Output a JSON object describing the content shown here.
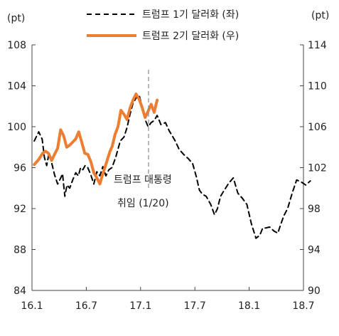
{
  "chart_data": {
    "type": "line",
    "left_axis": {
      "unit": "(pt)",
      "ylim": [
        84,
        108
      ],
      "ticks": [
        84,
        88,
        92,
        96,
        100,
        104,
        108
      ]
    },
    "right_axis": {
      "unit": "(pt)",
      "ylim": [
        90,
        114
      ],
      "ticks": [
        90,
        94,
        98,
        102,
        106,
        110,
        114
      ]
    },
    "x_axis": {
      "ticks": [
        "16.1",
        "16.7",
        "17.1",
        "17.7",
        "18.1",
        "18.7"
      ]
    },
    "annotation": {
      "lines": [
        "트럼프 대통령",
        "취임 (1/20)"
      ]
    },
    "series": [
      {
        "name": "트럼프 1기 달러화 (좌)",
        "axis": "left",
        "style": "dashed",
        "color": "#000000",
        "x": [
          "16.1",
          "16.1",
          "16.2",
          "16.2",
          "16.2",
          "16.2",
          "16.3",
          "16.3",
          "16.3",
          "16.4",
          "16.4",
          "16.4",
          "16.4",
          "16.5",
          "16.5",
          "16.5",
          "16.6",
          "16.6",
          "16.6",
          "16.6",
          "16.7",
          "16.7",
          "16.7",
          "16.8",
          "16.8",
          "16.8",
          "16.9",
          "16.9",
          "16.9",
          "16.10",
          "16.10",
          "16.11",
          "16.11",
          "16.11",
          "16.12",
          "16.12",
          "16.12",
          "17.1",
          "17.1",
          "17.1",
          "17.2",
          "17.2",
          "17.2",
          "17.3",
          "17.3",
          "17.4",
          "17.4",
          "17.4",
          "17.5",
          "17.5",
          "17.6",
          "17.6",
          "17.7",
          "17.7",
          "17.7",
          "17.8",
          "17.8",
          "17.9",
          "17.9",
          "17.9",
          "17.10",
          "17.10",
          "17.11",
          "17.11",
          "17.12",
          "17.12",
          "18.1",
          "18.1",
          "18.2",
          "18.2",
          "18.2",
          "18.3",
          "18.3",
          "18.4",
          "18.4",
          "18.4",
          "18.5",
          "18.5",
          "18.6",
          "18.6",
          "18.7",
          "18.7"
        ],
        "values": [
          98.6,
          99.5,
          98.8,
          97.0,
          96.2,
          97.4,
          96.5,
          95.3,
          94.4,
          94.9,
          95.4,
          93.2,
          94.3,
          94.0,
          94.8,
          95.5,
          95.2,
          96.0,
          95.8,
          96.2,
          96.0,
          95.3,
          94.4,
          95.6,
          95.2,
          96.1,
          95.2,
          95.8,
          96.0,
          97.0,
          98.6,
          99.0,
          99.9,
          101.2,
          102.3,
          102.8,
          103.1,
          102.0,
          100.7,
          100.0,
          100.4,
          100.6,
          101.1,
          100.2,
          100.4,
          99.6,
          99.1,
          98.6,
          97.8,
          97.3,
          96.9,
          96.4,
          95.1,
          93.8,
          93.4,
          93.2,
          92.4,
          91.4,
          92.0,
          93.2,
          93.8,
          94.5,
          95.0,
          93.5,
          93.0,
          92.4,
          90.5,
          89.1,
          89.4,
          90.1,
          90.1,
          90.2,
          89.8,
          89.6,
          90.5,
          91.3,
          92.0,
          93.5,
          94.8,
          94.6,
          94.3,
          94.7
        ]
      },
      {
        "name": "트럼프 2기 달러화 (우)",
        "axis": "right",
        "style": "solid",
        "color": "#ED7D31",
        "x": [
          "16.1",
          "16.1",
          "16.2",
          "16.2",
          "16.2",
          "16.3",
          "16.3",
          "16.3",
          "16.4",
          "16.4",
          "16.4",
          "16.5",
          "16.5",
          "16.5",
          "16.6",
          "16.6",
          "16.6",
          "16.7",
          "16.7",
          "16.7",
          "16.8",
          "16.8",
          "16.8",
          "16.9",
          "16.9",
          "16.9",
          "16.9",
          "16.10",
          "16.10",
          "16.10",
          "16.11",
          "16.11",
          "16.11",
          "16.12",
          "16.12",
          "16.12",
          "17.1",
          "17.1",
          "17.1",
          "17.2",
          "17.2",
          "17.2"
        ],
        "values": [
          102.3,
          102.8,
          103.4,
          103.6,
          103.4,
          102.7,
          103.3,
          103.9,
          105.7,
          105.1,
          104.0,
          104.2,
          104.5,
          104.8,
          105.5,
          104.5,
          103.4,
          103.3,
          102.6,
          101.5,
          101.0,
          100.4,
          101.4,
          102.2,
          102.9,
          103.6,
          104.1,
          105.2,
          106.0,
          107.6,
          107.2,
          106.7,
          107.8,
          108.6,
          109.2,
          108.7,
          107.9,
          106.9,
          107.5,
          108.2,
          107.4,
          108.6
        ]
      }
    ]
  }
}
